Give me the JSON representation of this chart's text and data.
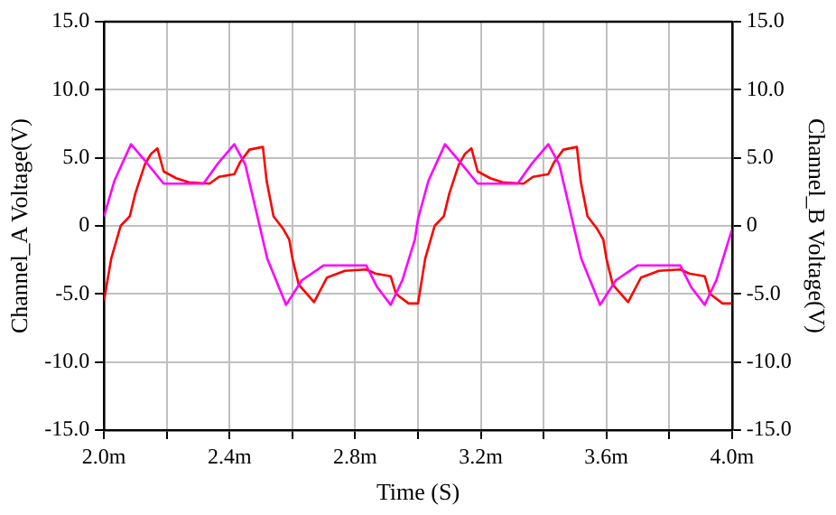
{
  "chart_data": {
    "type": "line",
    "xlabel": "Time (S)",
    "ylabel": "Channel_A Voltage(V)",
    "y2label": "Channel_B Voltage(V)",
    "xlim": [
      2.0,
      4.0
    ],
    "xticks": [
      {
        "value": 2.0,
        "label": "2.0m"
      },
      {
        "value": 2.2,
        "label": null
      },
      {
        "value": 2.4,
        "label": "2.4m"
      },
      {
        "value": 2.6,
        "label": null
      },
      {
        "value": 2.8,
        "label": "2.8m"
      },
      {
        "value": 3.0,
        "label": null
      },
      {
        "value": 3.2,
        "label": "3.2m"
      },
      {
        "value": 3.4,
        "label": null
      },
      {
        "value": 3.6,
        "label": "3.6m"
      },
      {
        "value": 3.8,
        "label": null
      },
      {
        "value": 4.0,
        "label": "4.0m"
      }
    ],
    "ylim": [
      -15,
      15
    ],
    "yticks": [
      {
        "value": -15,
        "label": "-15.0"
      },
      {
        "value": -10,
        "label": "-10.0"
      },
      {
        "value": -5,
        "label": "-5.0"
      },
      0,
      {
        "value": 5,
        "label": "5.0"
      },
      {
        "value": 10,
        "label": "10.0"
      },
      {
        "value": 15,
        "label": "15.0"
      }
    ],
    "y2lim": [
      -15,
      15
    ],
    "y2ticks": [
      {
        "value": -15,
        "label": "-15.0"
      },
      {
        "value": -10,
        "label": "-10.0"
      },
      {
        "value": -5,
        "label": "-5.0"
      },
      0,
      {
        "value": 5,
        "label": "5.0"
      },
      {
        "value": 10,
        "label": "10.0"
      },
      {
        "value": 15,
        "label": "15.0"
      }
    ],
    "grid": true,
    "legend": false,
    "marker": "none",
    "line_style": "solid",
    "series": [
      {
        "color": "#ff00ff",
        "x": [
          2.0,
          2.033,
          2.086,
          2.13,
          2.19,
          2.317,
          2.36,
          2.415,
          2.45,
          2.52,
          2.58,
          2.63,
          2.7,
          2.835,
          2.87,
          2.913,
          2.95,
          2.99,
          3.0,
          3.033,
          3.086,
          3.13,
          3.19,
          3.317,
          3.36,
          3.415,
          3.45,
          3.52,
          3.58,
          3.63,
          3.7,
          3.835,
          3.87,
          3.913,
          3.95,
          3.99,
          4.0
        ],
        "values": [
          0.7,
          3.3,
          6.0,
          4.8,
          3.1,
          3.1,
          4.5,
          6.0,
          4.5,
          -2.4,
          -5.8,
          -4.0,
          -2.9,
          -2.9,
          -4.5,
          -5.8,
          -4.0,
          -1.0,
          0.5,
          3.3,
          6.0,
          4.8,
          3.1,
          3.1,
          4.5,
          6.0,
          4.5,
          -2.4,
          -5.8,
          -4.0,
          -2.9,
          -2.9,
          -4.5,
          -5.8,
          -4.0,
          -1.0,
          -0.3
        ]
      },
      {
        "color": "#ff0000",
        "x": [
          2.0,
          2.023,
          2.053,
          2.082,
          2.1,
          2.13,
          2.15,
          2.17,
          2.19,
          2.23,
          2.27,
          2.336,
          2.366,
          2.415,
          2.434,
          2.463,
          2.506,
          2.518,
          2.54,
          2.57,
          2.59,
          2.6,
          2.62,
          2.669,
          2.71,
          2.767,
          2.835,
          2.864,
          2.913,
          2.93,
          2.97,
          3.0,
          3.023,
          3.053,
          3.082,
          3.1,
          3.13,
          3.15,
          3.17,
          3.19,
          3.23,
          3.27,
          3.336,
          3.366,
          3.415,
          3.434,
          3.463,
          3.506,
          3.518,
          3.54,
          3.57,
          3.59,
          3.6,
          3.62,
          3.669,
          3.71,
          3.767,
          3.835,
          3.864,
          3.913,
          3.93,
          3.97,
          4.0
        ],
        "values": [
          -5.5,
          -2.4,
          0.0,
          0.7,
          2.4,
          4.5,
          5.3,
          5.7,
          4.0,
          3.5,
          3.2,
          3.1,
          3.6,
          3.8,
          4.7,
          5.6,
          5.8,
          3.3,
          0.7,
          -0.2,
          -1.0,
          -2.4,
          -4.3,
          -5.6,
          -3.8,
          -3.3,
          -3.2,
          -3.5,
          -3.7,
          -5.0,
          -5.7,
          -5.7,
          -2.4,
          0.0,
          0.7,
          2.4,
          4.5,
          5.3,
          5.7,
          4.0,
          3.5,
          3.2,
          3.1,
          3.6,
          3.8,
          4.7,
          5.6,
          5.8,
          3.3,
          0.7,
          -0.2,
          -1.0,
          -2.4,
          -4.3,
          -5.6,
          -3.8,
          -3.3,
          -3.2,
          -3.5,
          -3.7,
          -5.0,
          -5.7,
          -5.7
        ]
      }
    ]
  }
}
